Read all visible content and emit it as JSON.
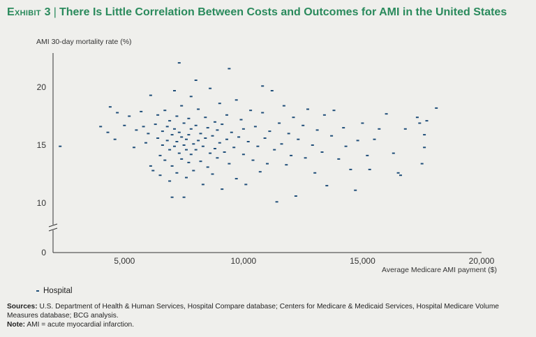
{
  "title": {
    "exhibit": "Exhibit 3",
    "text": "There Is Little Correlation Between Costs and Outcomes for AMI in the United States"
  },
  "legend": {
    "label": "Hospital"
  },
  "footer": {
    "sources_label": "Sources:",
    "sources_text": "U.S. Department of Health & Human Services, Hospital Compare database; Centers for Medicare & Medicaid Services, Hospital Medicare Volume Measures database; BCG analysis.",
    "note_label": "Note:",
    "note_text": "AMI = acute myocardial infarction."
  },
  "colors": {
    "title": "#2a8a5c",
    "marker": "#1f4e79",
    "axis": "#333333"
  },
  "chart_data": {
    "type": "scatter",
    "xlabel": "Average Medicare AMI payment ($)",
    "ylabel": "AMI 30-day mortality rate (%)",
    "xlim": [
      2000,
      20000
    ],
    "ylim": [
      0,
      23
    ],
    "y_axis_break": [
      1,
      9
    ],
    "xticks": [
      5000,
      10000,
      15000,
      20000
    ],
    "xtick_labels": [
      "5,000",
      "10,000",
      "15,000",
      "20,000"
    ],
    "yticks": [
      0,
      10,
      15,
      20
    ],
    "ytick_labels": [
      "0",
      "10",
      "15",
      "20"
    ],
    "grid": false,
    "legend_position": "bottom-left",
    "series": [
      {
        "name": "Hospital",
        "points": [
          [
            2300,
            14.9
          ],
          [
            4000,
            16.6
          ],
          [
            4400,
            18.3
          ],
          [
            4300,
            16.1
          ],
          [
            4600,
            15.5
          ],
          [
            4700,
            17.8
          ],
          [
            5000,
            16.7
          ],
          [
            5200,
            17.5
          ],
          [
            5400,
            14.8
          ],
          [
            5500,
            16.3
          ],
          [
            5700,
            17.9
          ],
          [
            5800,
            16.6
          ],
          [
            5900,
            15.2
          ],
          [
            6000,
            16.0
          ],
          [
            6100,
            13.2
          ],
          [
            6100,
            19.3
          ],
          [
            6200,
            12.8
          ],
          [
            6300,
            16.8
          ],
          [
            6400,
            15.6
          ],
          [
            6400,
            17.6
          ],
          [
            6500,
            14.1
          ],
          [
            6500,
            12.4
          ],
          [
            6600,
            16.2
          ],
          [
            6600,
            15.0
          ],
          [
            6700,
            18.0
          ],
          [
            6700,
            13.7
          ],
          [
            6800,
            15.4
          ],
          [
            6800,
            16.6
          ],
          [
            6900,
            14.6
          ],
          [
            6900,
            17.1
          ],
          [
            6900,
            11.9
          ],
          [
            7000,
            10.5
          ],
          [
            7000,
            15.9
          ],
          [
            7000,
            13.2
          ],
          [
            7100,
            16.4
          ],
          [
            7100,
            14.9
          ],
          [
            7100,
            19.7
          ],
          [
            7200,
            15.3
          ],
          [
            7200,
            12.6
          ],
          [
            7200,
            17.5
          ],
          [
            7300,
            22.1
          ],
          [
            7300,
            16.1
          ],
          [
            7300,
            14.3
          ],
          [
            7400,
            15.7
          ],
          [
            7400,
            13.8
          ],
          [
            7400,
            18.4
          ],
          [
            7500,
            10.5
          ],
          [
            7500,
            15.0
          ],
          [
            7500,
            16.9
          ],
          [
            7600,
            14.6
          ],
          [
            7600,
            15.5
          ],
          [
            7600,
            12.2
          ],
          [
            7700,
            17.3
          ],
          [
            7700,
            15.9
          ],
          [
            7700,
            13.5
          ],
          [
            7800,
            16.4
          ],
          [
            7800,
            14.2
          ],
          [
            7800,
            19.2
          ],
          [
            7900,
            15.1
          ],
          [
            7900,
            12.8
          ],
          [
            8000,
            16.7
          ],
          [
            8000,
            14.6
          ],
          [
            8000,
            20.6
          ],
          [
            8100,
            15.4
          ],
          [
            8100,
            18.1
          ],
          [
            8200,
            13.6
          ],
          [
            8200,
            16.0
          ],
          [
            8300,
            14.9
          ],
          [
            8300,
            11.6
          ],
          [
            8400,
            17.4
          ],
          [
            8400,
            15.6
          ],
          [
            8500,
            13.1
          ],
          [
            8500,
            16.5
          ],
          [
            8600,
            19.9
          ],
          [
            8600,
            14.3
          ],
          [
            8700,
            15.8
          ],
          [
            8700,
            12.5
          ],
          [
            8800,
            17.0
          ],
          [
            8800,
            14.7
          ],
          [
            8900,
            16.3
          ],
          [
            8900,
            13.9
          ],
          [
            9000,
            18.6
          ],
          [
            9000,
            15.2
          ],
          [
            9100,
            11.2
          ],
          [
            9100,
            16.8
          ],
          [
            9200,
            14.4
          ],
          [
            9300,
            17.6
          ],
          [
            9300,
            15.5
          ],
          [
            9400,
            21.6
          ],
          [
            9400,
            13.4
          ],
          [
            9500,
            16.1
          ],
          [
            9600,
            14.8
          ],
          [
            9700,
            18.9
          ],
          [
            9700,
            12.1
          ],
          [
            9800,
            15.7
          ],
          [
            9900,
            17.2
          ],
          [
            10000,
            14.2
          ],
          [
            10000,
            16.4
          ],
          [
            10100,
            11.6
          ],
          [
            10200,
            15.3
          ],
          [
            10300,
            18.0
          ],
          [
            10400,
            13.7
          ],
          [
            10500,
            16.6
          ],
          [
            10600,
            14.9
          ],
          [
            10700,
            12.7
          ],
          [
            10800,
            17.8
          ],
          [
            10800,
            20.1
          ],
          [
            10900,
            15.6
          ],
          [
            11000,
            13.4
          ],
          [
            11100,
            16.2
          ],
          [
            11200,
            19.7
          ],
          [
            11300,
            14.6
          ],
          [
            11400,
            10.1
          ],
          [
            11500,
            16.9
          ],
          [
            11600,
            15.1
          ],
          [
            11700,
            18.4
          ],
          [
            11800,
            13.3
          ],
          [
            11900,
            16.0
          ],
          [
            12000,
            14.1
          ],
          [
            12100,
            17.4
          ],
          [
            12200,
            10.6
          ],
          [
            12300,
            15.5
          ],
          [
            12500,
            16.7
          ],
          [
            12600,
            13.9
          ],
          [
            12700,
            18.1
          ],
          [
            12900,
            15.0
          ],
          [
            13000,
            12.6
          ],
          [
            13100,
            16.3
          ],
          [
            13300,
            14.4
          ],
          [
            13400,
            17.6
          ],
          [
            13500,
            11.5
          ],
          [
            13700,
            15.8
          ],
          [
            13800,
            18.0
          ],
          [
            14000,
            13.8
          ],
          [
            14200,
            16.5
          ],
          [
            14300,
            14.9
          ],
          [
            14500,
            12.9
          ],
          [
            14700,
            11.1
          ],
          [
            14800,
            15.4
          ],
          [
            15000,
            16.9
          ],
          [
            15200,
            14.1
          ],
          [
            15300,
            12.9
          ],
          [
            15500,
            15.5
          ],
          [
            15700,
            16.4
          ],
          [
            16000,
            17.7
          ],
          [
            16300,
            14.3
          ],
          [
            16500,
            12.6
          ],
          [
            16600,
            12.4
          ],
          [
            16800,
            16.4
          ],
          [
            17300,
            17.4
          ],
          [
            17400,
            16.9
          ],
          [
            17500,
            13.4
          ],
          [
            17600,
            15.9
          ],
          [
            17600,
            14.8
          ],
          [
            17700,
            17.1
          ],
          [
            18100,
            18.2
          ]
        ]
      }
    ]
  }
}
